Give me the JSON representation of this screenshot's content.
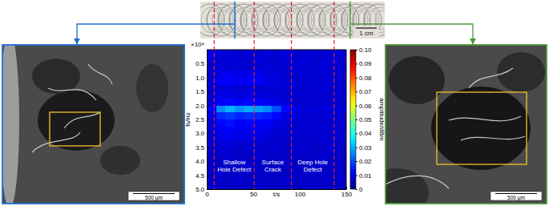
{
  "chart_data": {
    "type": "heatmap",
    "x_label": "t/s",
    "y_label": "fs/Hz",
    "y_multiplier": "×10⁴",
    "xlim": [
      0,
      150
    ],
    "xticks": [
      0,
      50,
      100,
      150
    ],
    "ylim": [
      0,
      5
    ],
    "yticks": [
      0.5,
      {
        "value": 1,
        "label": "1.0"
      },
      1.5,
      {
        "value": 2,
        "label": "2.0"
      },
      2.5,
      {
        "value": 3,
        "label": "3.0"
      },
      3.5,
      {
        "value": 4,
        "label": "4.0"
      },
      4.5,
      {
        "value": 5,
        "label": "5.0"
      }
    ],
    "grid": false,
    "x_edges": [
      0,
      10,
      20,
      30,
      40,
      50,
      60,
      70,
      80,
      90,
      100,
      110,
      120,
      130,
      140,
      150
    ],
    "y_edges": [
      0,
      0.25,
      0.5,
      0.75,
      1,
      1.25,
      1.5,
      1.75,
      2,
      2.25,
      2.5,
      2.75,
      3,
      3.25,
      3.5,
      3.75,
      4,
      4.25,
      4.5,
      4.75,
      5
    ],
    "z": [
      [
        0.01,
        0.009,
        0.009,
        0.008,
        0.009,
        0.008,
        0.009,
        0.008,
        0.009,
        0.008,
        0.008,
        0.009,
        0.008,
        0.008,
        0.009
      ],
      [
        0.009,
        0.008,
        0.009,
        0.008,
        0.008,
        0.009,
        0.008,
        0.008,
        0.009,
        0.008,
        0.009,
        0.008,
        0.008,
        0.009,
        0.008
      ],
      [
        0.008,
        0.009,
        0.008,
        0.009,
        0.008,
        0.008,
        0.009,
        0.008,
        0.008,
        0.009,
        0.008,
        0.008,
        0.009,
        0.008,
        0.008
      ],
      [
        0.008,
        0.01,
        0.011,
        0.01,
        0.01,
        0.011,
        0.009,
        0.009,
        0.008,
        0.008,
        0.009,
        0.008,
        0.008,
        0.008,
        0.008
      ],
      [
        0.009,
        0.012,
        0.012,
        0.011,
        0.012,
        0.012,
        0.01,
        0.009,
        0.009,
        0.008,
        0.008,
        0.009,
        0.008,
        0.008,
        0.008
      ],
      [
        0.008,
        0.009,
        0.009,
        0.008,
        0.009,
        0.008,
        0.008,
        0.009,
        0.008,
        0.008,
        0.008,
        0.008,
        0.009,
        0.008,
        0.008
      ],
      [
        0.008,
        0.01,
        0.01,
        0.009,
        0.01,
        0.009,
        0.009,
        0.008,
        0.008,
        0.008,
        0.008,
        0.008,
        0.008,
        0.008,
        0.008
      ],
      [
        0.009,
        0.012,
        0.013,
        0.012,
        0.013,
        0.012,
        0.011,
        0.01,
        0.009,
        0.008,
        0.008,
        0.008,
        0.008,
        0.008,
        0.008
      ],
      [
        0.012,
        0.026,
        0.03,
        0.027,
        0.029,
        0.028,
        0.026,
        0.02,
        0.013,
        0.01,
        0.009,
        0.009,
        0.009,
        0.009,
        0.009
      ],
      [
        0.01,
        0.016,
        0.018,
        0.016,
        0.017,
        0.016,
        0.015,
        0.013,
        0.01,
        0.009,
        0.008,
        0.008,
        0.008,
        0.008,
        0.008
      ],
      [
        0.009,
        0.013,
        0.014,
        0.012,
        0.013,
        0.012,
        0.012,
        0.01,
        0.009,
        0.008,
        0.008,
        0.008,
        0.008,
        0.008,
        0.008
      ],
      [
        0.008,
        0.011,
        0.012,
        0.011,
        0.011,
        0.011,
        0.01,
        0.009,
        0.008,
        0.008,
        0.008,
        0.008,
        0.008,
        0.008,
        0.008
      ],
      [
        0.008,
        0.01,
        0.011,
        0.01,
        0.01,
        0.01,
        0.009,
        0.008,
        0.008,
        0.008,
        0.008,
        0.008,
        0.008,
        0.008,
        0.008
      ],
      [
        0.008,
        0.008,
        0.009,
        0.008,
        0.008,
        0.008,
        0.008,
        0.008,
        0.007,
        0.008,
        0.008,
        0.007,
        0.008,
        0.008,
        0.007
      ],
      [
        0.007,
        0.008,
        0.008,
        0.007,
        0.008,
        0.008,
        0.007,
        0.008,
        0.007,
        0.007,
        0.008,
        0.007,
        0.007,
        0.008,
        0.007
      ],
      [
        0.007,
        0.007,
        0.008,
        0.007,
        0.007,
        0.008,
        0.007,
        0.007,
        0.007,
        0.007,
        0.007,
        0.007,
        0.008,
        0.007,
        0.007
      ],
      [
        0.007,
        0.007,
        0.007,
        0.007,
        0.008,
        0.007,
        0.007,
        0.007,
        0.007,
        0.007,
        0.007,
        0.007,
        0.007,
        0.007,
        0.007
      ],
      [
        0.007,
        0.008,
        0.007,
        0.007,
        0.007,
        0.007,
        0.008,
        0.007,
        0.007,
        0.007,
        0.007,
        0.008,
        0.007,
        0.007,
        0.007
      ],
      [
        0.007,
        0.007,
        0.007,
        0.008,
        0.007,
        0.007,
        0.007,
        0.007,
        0.008,
        0.007,
        0.007,
        0.007,
        0.007,
        0.007,
        0.008
      ],
      [
        0.008,
        0.007,
        0.007,
        0.007,
        0.007,
        0.008,
        0.007,
        0.007,
        0.007,
        0.007,
        0.008,
        0.007,
        0.007,
        0.007,
        0.007
      ]
    ],
    "colorbar": {
      "label": "amplitude/dBm",
      "lim": [
        0,
        0.1
      ],
      "ticks": [
        0,
        0.01,
        0.02,
        0.03,
        0.04,
        0.05,
        0.06,
        0.07,
        0.08,
        0.09,
        {
          "value": 0.1,
          "label": "0.10"
        }
      ]
    },
    "dividers": [
      8,
      51,
      91,
      137
    ],
    "region_labels": [
      "Shallow Hole Defect",
      "Surface Crack",
      "Deep Hole Defect"
    ]
  },
  "figure": {
    "photo_scale_label": "1 cm",
    "micrograph_scale_labels": [
      "500 μm",
      "500 μm"
    ]
  }
}
